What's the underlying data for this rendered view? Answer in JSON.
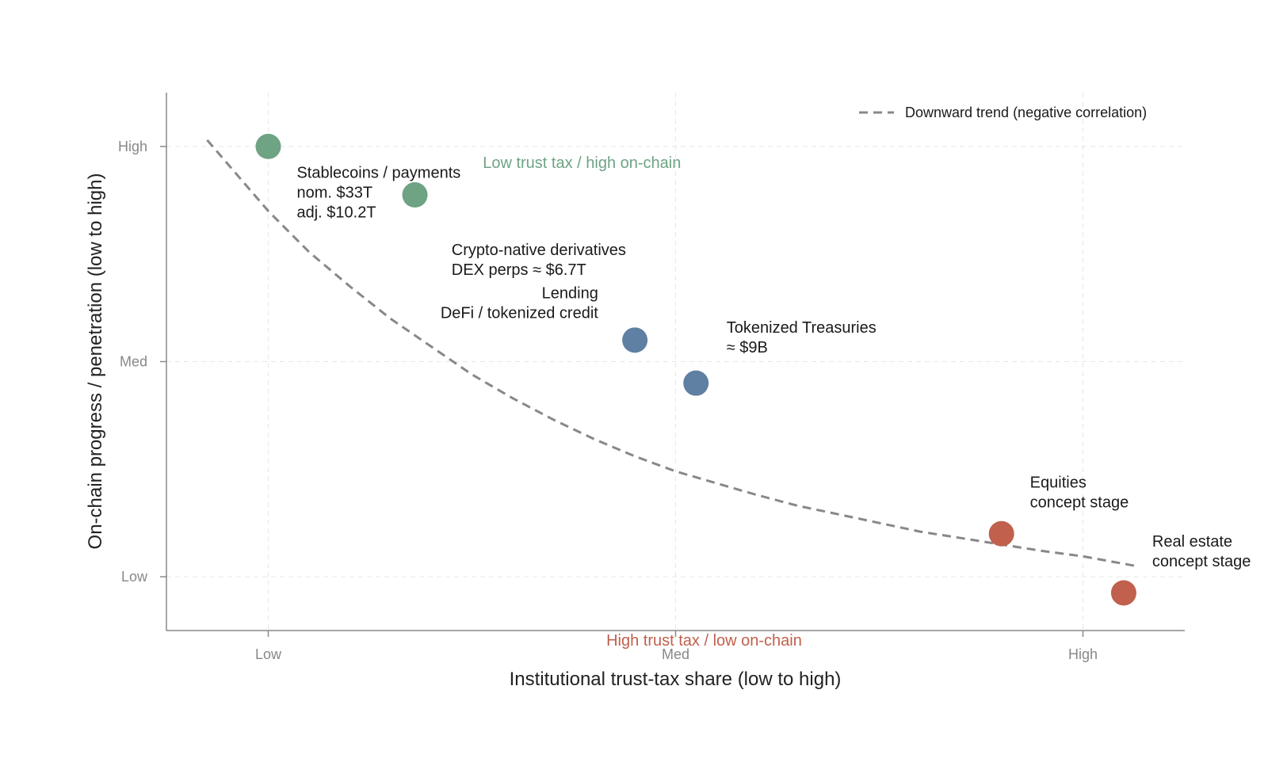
{
  "chart_data": {
    "type": "scatter",
    "xlabel": "Institutional trust-tax share (low to high)",
    "ylabel": "On-chain progress / penetration (low to high)",
    "xlim": [
      -0.25,
      2.25
    ],
    "ylim": [
      -0.25,
      2.25
    ],
    "x_ticks": [
      {
        "value": 0,
        "label": "Low"
      },
      {
        "value": 1,
        "label": "Med"
      },
      {
        "value": 2,
        "label": "High"
      }
    ],
    "y_ticks": [
      {
        "value": 0,
        "label": "Low"
      },
      {
        "value": 1,
        "label": "Med"
      },
      {
        "value": 2,
        "label": "High"
      }
    ],
    "grid": true,
    "colors": {
      "green": "#6ea384",
      "blue": "#5f7fa3",
      "red": "#c0604d",
      "trend": "#888888"
    },
    "points": [
      {
        "x": 0.0,
        "y": 2.0,
        "color": "green"
      },
      {
        "x": 0.36,
        "y": 1.775,
        "color": "green"
      },
      {
        "x": 0.9,
        "y": 1.1,
        "color": "blue"
      },
      {
        "x": 1.05,
        "y": 0.9,
        "color": "blue"
      },
      {
        "x": 1.8,
        "y": 0.2,
        "color": "red"
      },
      {
        "x": 2.1,
        "y": -0.075,
        "color": "red"
      }
    ],
    "annotations": [
      {
        "x": 0.07,
        "y": 1.855,
        "anchor": "start",
        "lines": [
          "Stablecoins / payments",
          "nom. $33T",
          "adj. $10.2T"
        ]
      },
      {
        "x": 0.45,
        "y": 1.495,
        "anchor": "start",
        "lines": [
          "Crypto-native derivatives",
          "DEX perps ≈ $6.7T"
        ]
      },
      {
        "x": 0.81,
        "y": 1.295,
        "anchor": "end",
        "lines": [
          "Lending",
          "DeFi / tokenized credit"
        ]
      },
      {
        "x": 1.125,
        "y": 1.135,
        "anchor": "start",
        "lines": [
          "Tokenized Treasuries",
          "≈ $9B"
        ]
      },
      {
        "x": 1.87,
        "y": 0.415,
        "anchor": "start",
        "lines": [
          "Equities",
          "concept stage"
        ]
      },
      {
        "x": 2.17,
        "y": 0.14,
        "anchor": "start",
        "lines": [
          "Real estate",
          "concept stage"
        ]
      }
    ],
    "regions": [
      {
        "label": "Low trust tax / high on-chain",
        "x": 0.77,
        "y": 1.9,
        "color": "green"
      },
      {
        "label": "High trust tax / low on-chain",
        "x": 1.07,
        "y": -0.32,
        "color": "red"
      }
    ],
    "trend": {
      "name": "Downward trend (negative correlation)",
      "style": "dashed",
      "points": [
        [
          -0.15,
          2.03
        ],
        [
          0.0,
          1.7
        ],
        [
          0.1,
          1.51
        ],
        [
          0.2,
          1.35
        ],
        [
          0.3,
          1.2
        ],
        [
          0.4,
          1.07
        ],
        [
          0.5,
          0.94
        ],
        [
          0.6,
          0.83
        ],
        [
          0.7,
          0.73
        ],
        [
          0.8,
          0.64
        ],
        [
          0.9,
          0.56
        ],
        [
          1.0,
          0.49
        ],
        [
          1.1,
          0.435
        ],
        [
          1.2,
          0.38
        ],
        [
          1.3,
          0.33
        ],
        [
          1.4,
          0.29
        ],
        [
          1.5,
          0.25
        ],
        [
          1.6,
          0.21
        ],
        [
          1.7,
          0.18
        ],
        [
          1.8,
          0.15
        ],
        [
          1.9,
          0.12
        ],
        [
          2.0,
          0.095
        ],
        [
          2.13,
          0.05
        ]
      ]
    },
    "legend": {
      "position": "top-right"
    }
  }
}
